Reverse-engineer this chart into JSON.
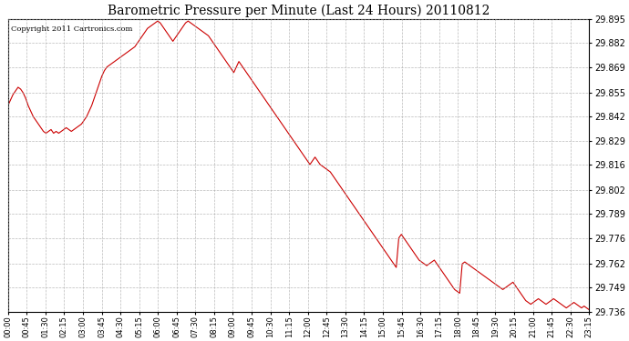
{
  "title": "Barometric Pressure per Minute (Last 24 Hours) 20110812",
  "copyright": "Copyright 2011 Cartronics.com",
  "line_color": "#cc0000",
  "background_color": "#ffffff",
  "plot_background": "#ffffff",
  "grid_color": "#aaaaaa",
  "ylim": [
    29.736,
    29.895
  ],
  "yticks": [
    29.736,
    29.749,
    29.762,
    29.776,
    29.789,
    29.802,
    29.816,
    29.829,
    29.842,
    29.855,
    29.869,
    29.882,
    29.895
  ],
  "xtick_labels": [
    "00:00",
    "00:45",
    "01:30",
    "02:15",
    "03:00",
    "03:45",
    "04:30",
    "05:15",
    "06:00",
    "06:45",
    "07:30",
    "08:15",
    "09:00",
    "09:45",
    "10:30",
    "11:15",
    "12:00",
    "12:45",
    "13:30",
    "14:15",
    "15:00",
    "15:45",
    "16:30",
    "17:15",
    "18:00",
    "18:45",
    "19:30",
    "20:15",
    "21:00",
    "21:45",
    "22:30",
    "23:15"
  ],
  "pressure_values": [
    29.848,
    29.851,
    29.854,
    29.856,
    29.858,
    29.857,
    29.855,
    29.852,
    29.848,
    29.845,
    29.842,
    29.84,
    29.838,
    29.836,
    29.834,
    29.833,
    29.834,
    29.835,
    29.833,
    29.834,
    29.833,
    29.834,
    29.835,
    29.836,
    29.835,
    29.834,
    29.835,
    29.836,
    29.837,
    29.838,
    29.84,
    29.842,
    29.845,
    29.848,
    29.852,
    29.856,
    29.86,
    29.864,
    29.867,
    29.869,
    29.87,
    29.871,
    29.872,
    29.873,
    29.874,
    29.875,
    29.876,
    29.877,
    29.878,
    29.879,
    29.88,
    29.882,
    29.884,
    29.886,
    29.888,
    29.89,
    29.891,
    29.892,
    29.893,
    29.894,
    29.893,
    29.891,
    29.889,
    29.887,
    29.885,
    29.883,
    29.885,
    29.887,
    29.889,
    29.891,
    29.893,
    29.894,
    29.893,
    29.892,
    29.891,
    29.89,
    29.889,
    29.888,
    29.887,
    29.886,
    29.884,
    29.882,
    29.88,
    29.878,
    29.876,
    29.874,
    29.872,
    29.87,
    29.868,
    29.866,
    29.869,
    29.872,
    29.87,
    29.868,
    29.866,
    29.864,
    29.862,
    29.86,
    29.858,
    29.856,
    29.854,
    29.852,
    29.85,
    29.848,
    29.846,
    29.844,
    29.842,
    29.84,
    29.838,
    29.836,
    29.834,
    29.832,
    29.83,
    29.828,
    29.826,
    29.824,
    29.822,
    29.82,
    29.818,
    29.816,
    29.818,
    29.82,
    29.818,
    29.816,
    29.815,
    29.814,
    29.813,
    29.812,
    29.81,
    29.808,
    29.806,
    29.804,
    29.802,
    29.8,
    29.798,
    29.796,
    29.794,
    29.792,
    29.79,
    29.788,
    29.786,
    29.784,
    29.782,
    29.78,
    29.778,
    29.776,
    29.774,
    29.772,
    29.77,
    29.768,
    29.766,
    29.764,
    29.762,
    29.76,
    29.776,
    29.778,
    29.776,
    29.774,
    29.772,
    29.77,
    29.768,
    29.766,
    29.764,
    29.763,
    29.762,
    29.761,
    29.762,
    29.763,
    29.764,
    29.762,
    29.76,
    29.758,
    29.756,
    29.754,
    29.752,
    29.75,
    29.748,
    29.747,
    29.746,
    29.762,
    29.763,
    29.762,
    29.761,
    29.76,
    29.759,
    29.758,
    29.757,
    29.756,
    29.755,
    29.754,
    29.753,
    29.752,
    29.751,
    29.75,
    29.749,
    29.748,
    29.749,
    29.75,
    29.751,
    29.752,
    29.75,
    29.748,
    29.746,
    29.744,
    29.742,
    29.741,
    29.74,
    29.741,
    29.742,
    29.743,
    29.742,
    29.741,
    29.74,
    29.741,
    29.742,
    29.743,
    29.742,
    29.741,
    29.74,
    29.739,
    29.738,
    29.739,
    29.74,
    29.741,
    29.74,
    29.739,
    29.738,
    29.739,
    29.738,
    29.737
  ]
}
